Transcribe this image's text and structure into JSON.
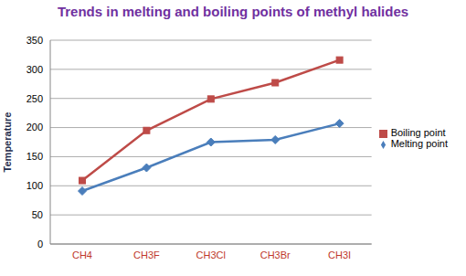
{
  "chart_data": {
    "type": "line",
    "title": "Trends in melting and boiling points of methyl halides",
    "y_label": "Temperature",
    "categories": [
      "CH4",
      "CH3F",
      "CH3Cl",
      "CH3Br",
      "CH3I"
    ],
    "series": [
      {
        "name": "Melting point",
        "color": "#4a7ebb",
        "marker": "diamond",
        "values": [
          91,
          131,
          175,
          179,
          207
        ]
      },
      {
        "name": "Boiling point",
        "color": "#be4b48",
        "marker": "square",
        "values": [
          109,
          195,
          249,
          277,
          316
        ]
      }
    ],
    "ylim": [
      0,
      350
    ],
    "yticks": [
      0,
      50,
      100,
      150,
      200,
      250,
      300,
      350
    ],
    "grid": true,
    "legend": "right"
  }
}
